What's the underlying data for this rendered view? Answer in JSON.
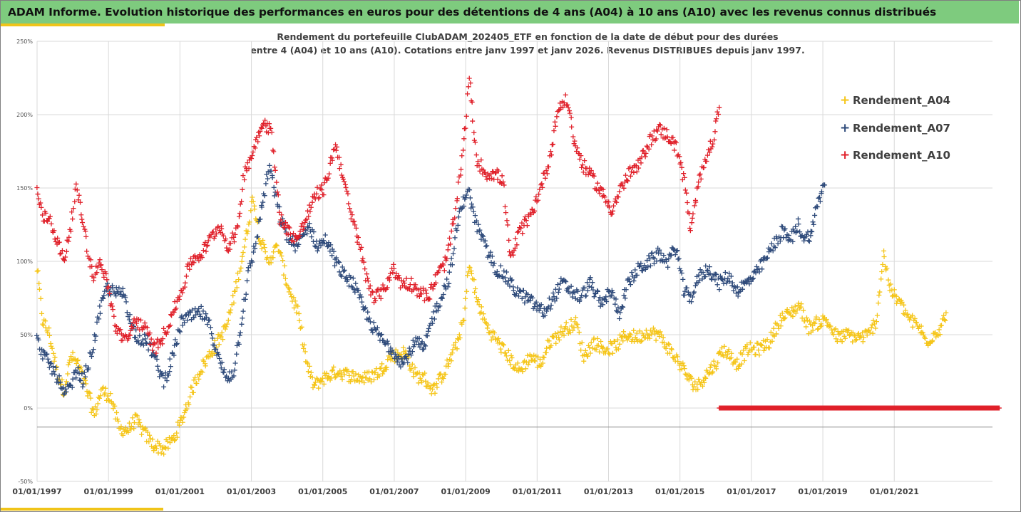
{
  "banner": {
    "title": "ADAM Informe. Evolution historique des performances en euros pour des détentions de 4 ans (A04) à 10 ans (A10) avec les revenus connus distribués"
  },
  "colors": {
    "banner_bg": "#7ecb7e",
    "accent": "#f0c419",
    "A04": "#f5c518",
    "A07": "#2e4a7a",
    "A10": "#e0202a",
    "grid": "#d9d9d9"
  },
  "chart_data": {
    "type": "scatter",
    "title_lines": [
      "Rendement du portefeuille ClubADAM_202405_ETF en fonction de la date de début pour des durées",
      "entre 4 (A04) et 10 ans (A10). Cotations entre janv 1997 et janv 2026. Revenus DISTRIBUES depuis janv 1997."
    ],
    "xlabel": "",
    "ylabel": "",
    "x_range": [
      "1997-01-01",
      "2023-10-01"
    ],
    "y_range": [
      -50,
      250
    ],
    "y_ticks": [
      -50,
      0,
      50,
      100,
      150,
      200,
      250
    ],
    "y_tick_labels": [
      "-50%",
      "0%",
      "50%",
      "100%",
      "150%",
      "200%",
      "250%"
    ],
    "x_ticks": [
      1997,
      1999,
      2001,
      2003,
      2005,
      2007,
      2009,
      2011,
      2013,
      2015,
      2017,
      2019,
      2021
    ],
    "x_tick_labels": [
      "01/01/1997",
      "01/01/1999",
      "01/01/2001",
      "01/01/2003",
      "01/01/2005",
      "01/01/2007",
      "01/01/2009",
      "01/01/2011",
      "01/01/2013",
      "01/01/2015",
      "01/01/2017",
      "01/01/2019",
      "01/01/2021"
    ],
    "grid": "horizontal",
    "legend_position": "right",
    "marker": "+",
    "series": [
      {
        "name": "Rendement_A04",
        "color": "#f5c518",
        "anchors": [
          [
            1997.0,
            95
          ],
          [
            1997.15,
            60
          ],
          [
            1997.35,
            50
          ],
          [
            1997.55,
            25
          ],
          [
            1997.75,
            12
          ],
          [
            1997.95,
            35
          ],
          [
            1998.15,
            30
          ],
          [
            1998.4,
            12
          ],
          [
            1998.6,
            -5
          ],
          [
            1998.8,
            12
          ],
          [
            1999.05,
            8
          ],
          [
            1999.3,
            -14
          ],
          [
            1999.55,
            -15
          ],
          [
            1999.75,
            -8
          ],
          [
            2000.0,
            -17
          ],
          [
            2000.25,
            -25
          ],
          [
            2000.55,
            -28
          ],
          [
            2000.85,
            -20
          ],
          [
            2001.1,
            -5
          ],
          [
            2001.3,
            10
          ],
          [
            2001.55,
            25
          ],
          [
            2001.8,
            35
          ],
          [
            2002.05,
            45
          ],
          [
            2002.3,
            55
          ],
          [
            2002.55,
            80
          ],
          [
            2002.8,
            110
          ],
          [
            2003.05,
            145
          ],
          [
            2003.2,
            120
          ],
          [
            2003.45,
            100
          ],
          [
            2003.75,
            110
          ],
          [
            2004.0,
            85
          ],
          [
            2004.3,
            65
          ],
          [
            2004.55,
            30
          ],
          [
            2004.75,
            15
          ],
          [
            2005.0,
            20
          ],
          [
            2005.4,
            25
          ],
          [
            2005.8,
            22
          ],
          [
            2006.2,
            20
          ],
          [
            2006.6,
            25
          ],
          [
            2006.9,
            35
          ],
          [
            2007.3,
            38
          ],
          [
            2007.6,
            22
          ],
          [
            2007.85,
            20
          ],
          [
            2008.1,
            12
          ],
          [
            2008.4,
            25
          ],
          [
            2008.7,
            40
          ],
          [
            2008.95,
            60
          ],
          [
            2009.1,
            100
          ],
          [
            2009.3,
            75
          ],
          [
            2009.6,
            55
          ],
          [
            2009.9,
            45
          ],
          [
            2010.2,
            35
          ],
          [
            2010.5,
            25
          ],
          [
            2010.8,
            35
          ],
          [
            2011.1,
            30
          ],
          [
            2011.35,
            45
          ],
          [
            2011.6,
            50
          ],
          [
            2011.85,
            55
          ],
          [
            2012.1,
            58
          ],
          [
            2012.3,
            35
          ],
          [
            2012.6,
            45
          ],
          [
            2012.9,
            40
          ],
          [
            2013.2,
            42
          ],
          [
            2013.5,
            50
          ],
          [
            2013.8,
            48
          ],
          [
            2014.1,
            52
          ],
          [
            2014.4,
            50
          ],
          [
            2014.7,
            40
          ],
          [
            2015.0,
            30
          ],
          [
            2015.3,
            18
          ],
          [
            2015.5,
            15
          ],
          [
            2015.7,
            22
          ],
          [
            2016.0,
            30
          ],
          [
            2016.2,
            40
          ],
          [
            2016.45,
            35
          ],
          [
            2016.6,
            30
          ],
          [
            2016.9,
            40
          ],
          [
            2017.2,
            40
          ],
          [
            2017.5,
            45
          ],
          [
            2017.8,
            60
          ],
          [
            2018.1,
            65
          ],
          [
            2018.35,
            70
          ],
          [
            2018.6,
            55
          ],
          [
            2018.85,
            58
          ],
          [
            2019.1,
            60
          ],
          [
            2019.4,
            48
          ],
          [
            2019.7,
            50
          ],
          [
            2020.0,
            48
          ],
          [
            2020.3,
            50
          ],
          [
            2020.5,
            60
          ],
          [
            2020.7,
            105
          ],
          [
            2020.9,
            80
          ],
          [
            2021.2,
            70
          ],
          [
            2021.45,
            60
          ],
          [
            2021.7,
            55
          ],
          [
            2021.9,
            45
          ],
          [
            2022.1,
            50
          ],
          [
            2022.3,
            55
          ],
          [
            2022.45,
            65
          ]
        ]
      },
      {
        "name": "Rendement_A07",
        "color": "#2e4a7a",
        "anchors": [
          [
            1997.0,
            46
          ],
          [
            1997.2,
            35
          ],
          [
            1997.4,
            28
          ],
          [
            1997.6,
            20
          ],
          [
            1997.75,
            8
          ],
          [
            1997.95,
            15
          ],
          [
            1998.1,
            25
          ],
          [
            1998.3,
            18
          ],
          [
            1998.55,
            40
          ],
          [
            1998.75,
            65
          ],
          [
            1998.95,
            82
          ],
          [
            1999.2,
            78
          ],
          [
            1999.45,
            78
          ],
          [
            1999.65,
            55
          ],
          [
            1999.85,
            48
          ],
          [
            2000.1,
            45
          ],
          [
            2000.35,
            30
          ],
          [
            2000.55,
            18
          ],
          [
            2000.8,
            35
          ],
          [
            2001.05,
            60
          ],
          [
            2001.3,
            62
          ],
          [
            2001.6,
            65
          ],
          [
            2001.85,
            55
          ],
          [
            2002.05,
            35
          ],
          [
            2002.3,
            20
          ],
          [
            2002.5,
            25
          ],
          [
            2002.7,
            55
          ],
          [
            2002.9,
            90
          ],
          [
            2003.1,
            110
          ],
          [
            2003.35,
            145
          ],
          [
            2003.5,
            165
          ],
          [
            2003.8,
            130
          ],
          [
            2004.05,
            115
          ],
          [
            2004.3,
            110
          ],
          [
            2004.6,
            125
          ],
          [
            2004.85,
            110
          ],
          [
            2005.1,
            115
          ],
          [
            2005.35,
            100
          ],
          [
            2005.6,
            90
          ],
          [
            2005.85,
            85
          ],
          [
            2006.1,
            70
          ],
          [
            2006.4,
            55
          ],
          [
            2006.7,
            45
          ],
          [
            2006.95,
            40
          ],
          [
            2007.25,
            30
          ],
          [
            2007.6,
            45
          ],
          [
            2007.85,
            40
          ],
          [
            2008.05,
            60
          ],
          [
            2008.3,
            75
          ],
          [
            2008.55,
            90
          ],
          [
            2008.8,
            130
          ],
          [
            2009.05,
            150
          ],
          [
            2009.3,
            125
          ],
          [
            2009.55,
            110
          ],
          [
            2009.85,
            95
          ],
          [
            2010.1,
            90
          ],
          [
            2010.4,
            80
          ],
          [
            2010.7,
            75
          ],
          [
            2010.95,
            70
          ],
          [
            2011.2,
            65
          ],
          [
            2011.45,
            75
          ],
          [
            2011.7,
            85
          ],
          [
            2011.95,
            80
          ],
          [
            2012.2,
            75
          ],
          [
            2012.5,
            85
          ],
          [
            2012.8,
            70
          ],
          [
            2013.05,
            80
          ],
          [
            2013.3,
            65
          ],
          [
            2013.55,
            85
          ],
          [
            2013.85,
            95
          ],
          [
            2014.15,
            100
          ],
          [
            2014.4,
            105
          ],
          [
            2014.65,
            100
          ],
          [
            2014.9,
            110
          ],
          [
            2015.1,
            80
          ],
          [
            2015.3,
            75
          ],
          [
            2015.55,
            90
          ],
          [
            2015.8,
            95
          ],
          [
            2016.1,
            85
          ],
          [
            2016.35,
            90
          ],
          [
            2016.6,
            80
          ],
          [
            2016.85,
            85
          ],
          [
            2017.1,
            90
          ],
          [
            2017.35,
            100
          ],
          [
            2017.6,
            110
          ],
          [
            2017.85,
            120
          ],
          [
            2018.1,
            115
          ],
          [
            2018.3,
            125
          ],
          [
            2018.5,
            115
          ],
          [
            2018.7,
            120
          ],
          [
            2018.85,
            140
          ],
          [
            2019.05,
            152
          ]
        ]
      },
      {
        "name": "Rendement_A10",
        "color": "#e0202a",
        "anchors": [
          [
            1997.0,
            150
          ],
          [
            1997.15,
            130
          ],
          [
            1997.35,
            130
          ],
          [
            1997.55,
            115
          ],
          [
            1997.75,
            100
          ],
          [
            1997.95,
            125
          ],
          [
            1998.1,
            150
          ],
          [
            1998.3,
            125
          ],
          [
            1998.55,
            90
          ],
          [
            1998.8,
            100
          ],
          [
            1999.0,
            80
          ],
          [
            1999.2,
            55
          ],
          [
            1999.5,
            45
          ],
          [
            1999.75,
            60
          ],
          [
            2000.0,
            55
          ],
          [
            2000.3,
            40
          ],
          [
            2000.55,
            50
          ],
          [
            2000.8,
            65
          ],
          [
            2001.05,
            80
          ],
          [
            2001.3,
            100
          ],
          [
            2001.6,
            105
          ],
          [
            2001.85,
            115
          ],
          [
            2002.1,
            125
          ],
          [
            2002.35,
            110
          ],
          [
            2002.6,
            120
          ],
          [
            2002.8,
            160
          ],
          [
            2003.05,
            175
          ],
          [
            2003.3,
            195
          ],
          [
            2003.55,
            190
          ],
          [
            2003.8,
            130
          ],
          [
            2004.05,
            120
          ],
          [
            2004.3,
            115
          ],
          [
            2004.55,
            130
          ],
          [
            2004.8,
            145
          ],
          [
            2005.05,
            150
          ],
          [
            2005.35,
            180
          ],
          [
            2005.55,
            160
          ],
          [
            2005.8,
            130
          ],
          [
            2006.0,
            115
          ],
          [
            2006.2,
            90
          ],
          [
            2006.45,
            75
          ],
          [
            2006.7,
            80
          ],
          [
            2006.95,
            95
          ],
          [
            2007.2,
            85
          ],
          [
            2007.45,
            85
          ],
          [
            2007.7,
            80
          ],
          [
            2007.95,
            75
          ],
          [
            2008.2,
            90
          ],
          [
            2008.45,
            100
          ],
          [
            2008.7,
            130
          ],
          [
            2008.95,
            180
          ],
          [
            2009.1,
            225
          ],
          [
            2009.3,
            170
          ],
          [
            2009.55,
            160
          ],
          [
            2009.8,
            160
          ],
          [
            2010.05,
            155
          ],
          [
            2010.25,
            100
          ],
          [
            2010.5,
            120
          ],
          [
            2010.8,
            130
          ],
          [
            2011.1,
            150
          ],
          [
            2011.35,
            170
          ],
          [
            2011.6,
            205
          ],
          [
            2011.85,
            210
          ],
          [
            2012.05,
            180
          ],
          [
            2012.3,
            165
          ],
          [
            2012.6,
            155
          ],
          [
            2012.85,
            145
          ],
          [
            2013.1,
            135
          ],
          [
            2013.35,
            150
          ],
          [
            2013.6,
            160
          ],
          [
            2013.85,
            165
          ],
          [
            2014.1,
            180
          ],
          [
            2014.4,
            190
          ],
          [
            2014.7,
            185
          ],
          [
            2014.95,
            175
          ],
          [
            2015.15,
            150
          ],
          [
            2015.3,
            120
          ],
          [
            2015.5,
            150
          ],
          [
            2015.7,
            170
          ],
          [
            2015.9,
            180
          ],
          [
            2016.1,
            205
          ]
        ]
      }
    ],
    "zero_series": {
      "color": "#e0202a",
      "x_start": 2016.1,
      "x_end": 2023.95,
      "value": 0
    }
  }
}
